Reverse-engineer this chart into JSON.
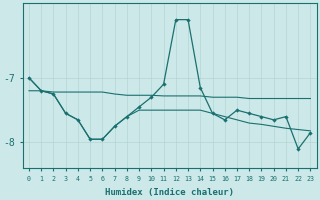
{
  "xlabel": "Humidex (Indice chaleur)",
  "x": [
    0,
    1,
    2,
    3,
    4,
    5,
    6,
    7,
    8,
    9,
    10,
    11,
    12,
    13,
    14,
    15,
    16,
    17,
    18,
    19,
    20,
    21,
    22,
    23
  ],
  "y_main": [
    -7.0,
    -7.2,
    -7.25,
    -7.55,
    -7.65,
    -7.95,
    -7.95,
    -7.75,
    -7.6,
    -7.45,
    -7.3,
    -7.1,
    -6.1,
    -6.1,
    -7.15,
    -7.55,
    -7.65,
    -7.5,
    -7.55,
    -7.6,
    -7.65,
    -7.6,
    -8.1,
    -7.85
  ],
  "y_upper": [
    -7.2,
    -7.2,
    -7.22,
    -7.22,
    -7.22,
    -7.22,
    -7.22,
    -7.25,
    -7.27,
    -7.27,
    -7.27,
    -7.28,
    -7.28,
    -7.28,
    -7.28,
    -7.3,
    -7.3,
    -7.3,
    -7.32,
    -7.32,
    -7.32,
    -7.32,
    -7.32,
    -7.32
  ],
  "y_lower": [
    -7.0,
    -7.2,
    -7.25,
    -7.55,
    -7.65,
    -7.95,
    -7.95,
    -7.75,
    -7.6,
    -7.5,
    -7.5,
    -7.5,
    -7.5,
    -7.5,
    -7.5,
    -7.55,
    -7.6,
    -7.65,
    -7.7,
    -7.72,
    -7.75,
    -7.78,
    -7.8,
    -7.82
  ],
  "bg_color": "#cce8e8",
  "line_color": "#1a7070",
  "grid_color": "#b5d5d5",
  "ylim": [
    -8.4,
    -5.85
  ],
  "yticks": [
    -8,
    -7
  ],
  "ytick_labels": [
    "-8",
    "-7"
  ],
  "xlim": [
    -0.5,
    23.5
  ]
}
